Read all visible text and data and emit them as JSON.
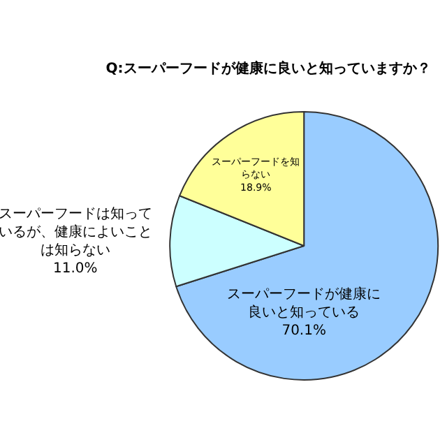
{
  "chart_data": {
    "type": "pie",
    "title": "Q:スーパーフードが健康に良いと知っていますか？",
    "categories": [
      "スーパーフードが健康に良いと知っている",
      "スーパーフードは知っているが、健康によいことは知らない",
      "スーパーフードを知らない"
    ],
    "values": [
      70.1,
      11.0,
      18.9
    ],
    "value_labels": [
      "70.1%",
      "11.0%",
      "18.9%"
    ],
    "colors": [
      "#99ccff",
      "#ccffff",
      "#ffff99"
    ],
    "legend": false
  }
}
